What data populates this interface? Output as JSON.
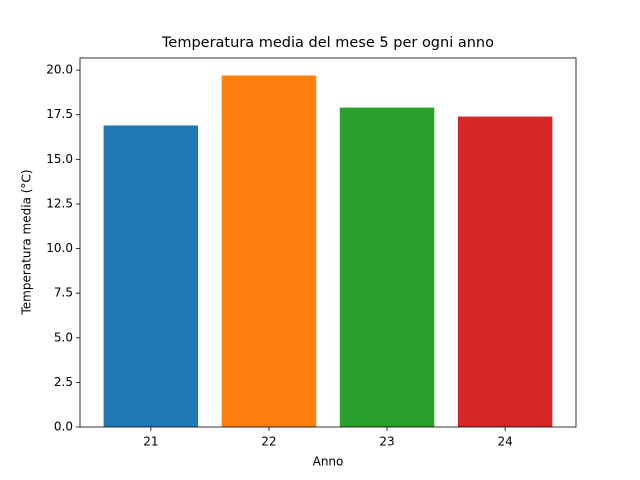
{
  "chart_data": {
    "type": "bar",
    "title": "Temperatura media del mese 5 per ogni anno",
    "x_label": "Anno",
    "y_label": "Temperatura media (°C)",
    "categories": [
      "21",
      "22",
      "23",
      "24"
    ],
    "values": [
      16.9,
      19.7,
      17.9,
      17.4
    ],
    "colors": [
      "#1f77b4",
      "#ff7f0e",
      "#2ca02c",
      "#d62728"
    ],
    "ylim": [
      0,
      20.68
    ],
    "yticks": [
      {
        "value": 0,
        "label": "0.0"
      },
      2.5,
      {
        "value": 5,
        "label": "5.0"
      },
      7.5,
      {
        "value": 10,
        "label": "10.0"
      },
      12.5,
      {
        "value": 15,
        "label": "15.0"
      },
      17.5,
      {
        "value": 20,
        "label": "20.0"
      }
    ],
    "grid": false
  }
}
